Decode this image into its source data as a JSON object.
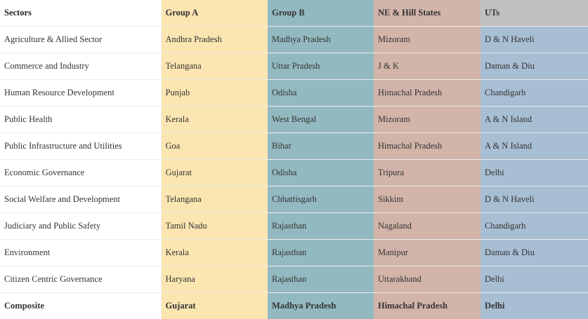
{
  "headers": {
    "sectors": "Sectors",
    "group_a": "Group A",
    "group_b": "Group B",
    "ne_hill": "NE & Hill States",
    "uts": "UTs"
  },
  "rows": [
    {
      "sector": "Agriculture & Allied Sector",
      "group_a": "Andhra Pradesh",
      "group_b": "Madhya Pradesh",
      "ne_hill": "Mizoram",
      "uts": "D & N Haveli"
    },
    {
      "sector": "Commerce and Industry",
      "group_a": "Telangana",
      "group_b": "Uttar Pradesh",
      "ne_hill": "J & K",
      "uts": "Daman & Diu"
    },
    {
      "sector": "Human Resource Development",
      "group_a": "Punjab",
      "group_b": "Odisha",
      "ne_hill": "Himachal Pradesh",
      "uts": "Chandigarh"
    },
    {
      "sector": "Public Health",
      "group_a": "Kerala",
      "group_b": "West Bengal",
      "ne_hill": "Mizoram",
      "uts": "A & N Island"
    },
    {
      "sector": "Public Infrastructure and Utilities",
      "group_a": "Goa",
      "group_b": "Bihar",
      "ne_hill": "Himachal Pradesh",
      "uts": "A & N Island"
    },
    {
      "sector": "Economic Governance",
      "group_a": "Gujarat",
      "group_b": "Odisha",
      "ne_hill": "Tripura",
      "uts": "Delhi"
    },
    {
      "sector": "Social Welfare and Development",
      "group_a": "Telangana",
      "group_b": "Chhattisgarh",
      "ne_hill": "Sikkim",
      "uts": "D & N Haveli"
    },
    {
      "sector": "Judiciary and Public Safety",
      "group_a": "Tamil Nadu",
      "group_b": "Rajasthan",
      "ne_hill": "Nagaland",
      "uts": "Chandigarh"
    },
    {
      "sector": "Environment",
      "group_a": "Kerala",
      "group_b": "Rajasthan",
      "ne_hill": "Manipur",
      "uts": "Daman & Diu"
    },
    {
      "sector": "Citizen Centric Governance",
      "group_a": "Haryana",
      "group_b": "Rajasthan",
      "ne_hill": "Uttarakhand",
      "uts": "Delhi"
    }
  ],
  "composite": {
    "sector": "Composite",
    "group_a": "Gujarat",
    "group_b": "Madhya Pradesh",
    "ne_hill": "Himachal Pradesh",
    "uts": "Delhi"
  },
  "colors": {
    "group_a": "#fbe5b1",
    "group_b": "#93b9c0",
    "ne_hill": "#d2b4a9",
    "uts": "#a8bed3",
    "uts_header": "#c0c0c0"
  }
}
